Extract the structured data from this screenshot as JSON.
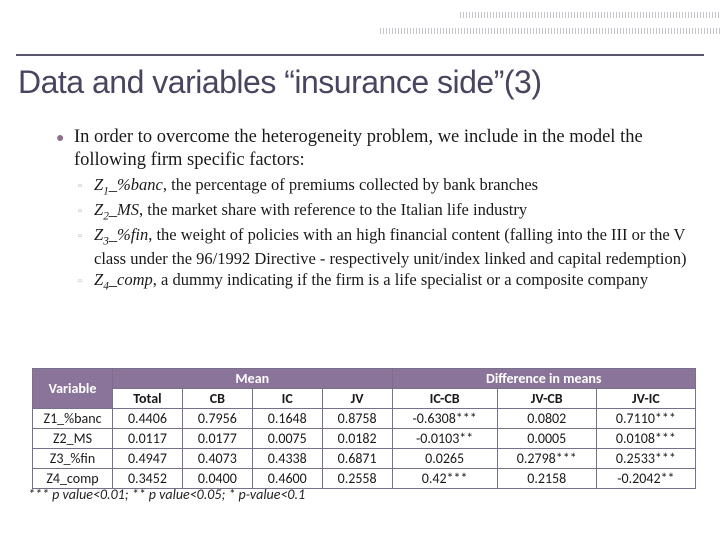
{
  "title": "Data and variables “insurance side”(3)",
  "intro": "In order to overcome the heterogeneity problem, we include in the model the following firm specific factors:",
  "sub": {
    "z1_var": "Z",
    "z1_sub": "1",
    "z1_name": "_%banc",
    "z1_rest": ", the percentage of premiums collected by bank branches",
    "z2_var": "Z",
    "z2_sub": "2",
    "z2_name": "_MS",
    "z2_rest": ", the market share with reference to the Italian life industry",
    "z3_var": "Z",
    "z3_sub": "3",
    "z3_name": "_%fin",
    "z3_rest": ", the weight of policies with an high financial content (falling into the III or the V class under the 96/1992 Directive - respectively unit/index linked and capital redemption)",
    "z4_var": "Z",
    "z4_sub": "4",
    "z4_name": "_comp",
    "z4_rest": ", a dummy indicating if the firm is a life specialist or a composite company"
  },
  "table": {
    "header_variable": "Variable",
    "header_mean": "Mean",
    "header_diff": "Difference in means",
    "col_total": "Total",
    "col_cb": "CB",
    "col_ic": "IC",
    "col_jv": "JV",
    "col_iccb": "IC-CB",
    "col_jvcb": "JV-CB",
    "col_jvic": "JV-IC",
    "r1_name": "Z1_%banc",
    "r1_total": "0.4406",
    "r1_cb": "0.7956",
    "r1_ic": "0.1648",
    "r1_jv": "0.8758",
    "r1_iccb": "-0.6308***",
    "r1_jvcb": "0.0802",
    "r1_jvic": "0.7110***",
    "r2_name": "Z2_MS",
    "r2_total": "0.0117",
    "r2_cb": "0.0177",
    "r2_ic": "0.0075",
    "r2_jv": "0.0182",
    "r2_iccb": "-0.0103**",
    "r2_jvcb": "0.0005",
    "r2_jvic": "0.0108***",
    "r3_name": "Z3_%fin",
    "r3_total": "0.4947",
    "r3_cb": "0.4073",
    "r3_ic": "0.4338",
    "r3_jv": "0.6871",
    "r3_iccb": "0.0265",
    "r3_jvcb": "0.2798***",
    "r3_jvic": "0.2533***",
    "r4_name": "Z4_comp",
    "r4_total": "0.3452",
    "r4_cb": "0.0400",
    "r4_ic": "0.4600",
    "r4_jv": "0.2558",
    "r4_iccb": "0.42***",
    "r4_jvcb": "0.2158",
    "r4_jvic": "-0.2042**"
  },
  "footnote": "*** p value<0.01; ** p value<0.05; * p-value<0.1"
}
